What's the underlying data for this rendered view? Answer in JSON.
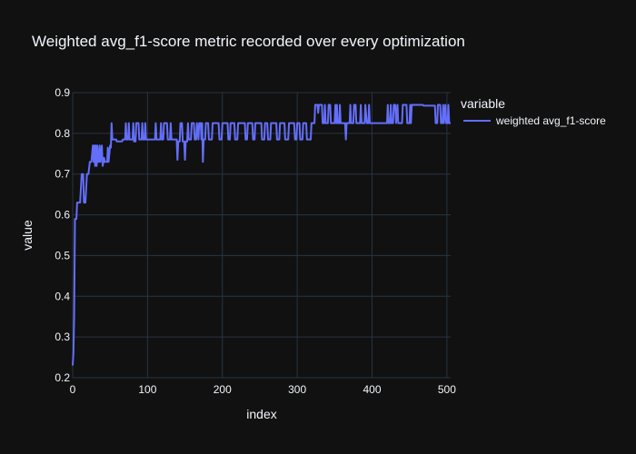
{
  "chart_data": {
    "type": "line",
    "title": "Weighted avg_f1-score metric recorded over every optimization",
    "xlabel": "index",
    "ylabel": "value",
    "xlim": [
      0,
      505
    ],
    "ylim": [
      0.2,
      0.9
    ],
    "xticks": [
      0,
      100,
      200,
      300,
      400,
      500
    ],
    "xtick_labels": [
      "0",
      "100",
      "200",
      "300",
      "400",
      "500"
    ],
    "yticks": [
      0.2,
      0.3,
      0.4,
      0.5,
      0.6,
      0.7,
      0.8,
      0.9
    ],
    "ytick_labels": [
      "0.2",
      "0.3",
      "0.4",
      "0.5",
      "0.6",
      "0.7",
      "0.8",
      "0.9"
    ],
    "legend": {
      "title": "variable",
      "position": "top-right"
    },
    "series": [
      {
        "name": "weighted avg_f1-score",
        "color": "#636efa",
        "points": [
          [
            0,
            0.23
          ],
          [
            1,
            0.26
          ],
          [
            2,
            0.35
          ],
          [
            3,
            0.59
          ],
          [
            5,
            0.59
          ],
          [
            6,
            0.63
          ],
          [
            10,
            0.63
          ],
          [
            12,
            0.7
          ],
          [
            14,
            0.7
          ],
          [
            15,
            0.63
          ],
          [
            17,
            0.63
          ],
          [
            19,
            0.7
          ],
          [
            21,
            0.7
          ],
          [
            23,
            0.73
          ],
          [
            25,
            0.73
          ],
          [
            27,
            0.77
          ],
          [
            28,
            0.73
          ],
          [
            29,
            0.77
          ],
          [
            30,
            0.72
          ],
          [
            31,
            0.77
          ],
          [
            32,
            0.72
          ],
          [
            33,
            0.77
          ],
          [
            34,
            0.73
          ],
          [
            35,
            0.73
          ],
          [
            36,
            0.77
          ],
          [
            37,
            0.73
          ],
          [
            39,
            0.77
          ],
          [
            40,
            0.72
          ],
          [
            42,
            0.74
          ],
          [
            43,
            0.73
          ],
          [
            46,
            0.73
          ],
          [
            47,
            0.765
          ],
          [
            48,
            0.73
          ],
          [
            50,
            0.77
          ],
          [
            51,
            0.765
          ],
          [
            52,
            0.825
          ],
          [
            53,
            0.785
          ],
          [
            58,
            0.785
          ],
          [
            59,
            0.78
          ],
          [
            66,
            0.78
          ],
          [
            67,
            0.785
          ],
          [
            70,
            0.785
          ],
          [
            71,
            0.825
          ],
          [
            72,
            0.785
          ],
          [
            74,
            0.785
          ],
          [
            75,
            0.825
          ],
          [
            76,
            0.785
          ],
          [
            80,
            0.785
          ],
          [
            81,
            0.825
          ],
          [
            82,
            0.78
          ],
          [
            84,
            0.78
          ],
          [
            85,
            0.825
          ],
          [
            88,
            0.825
          ],
          [
            89,
            0.785
          ],
          [
            92,
            0.785
          ],
          [
            93,
            0.825
          ],
          [
            94,
            0.785
          ],
          [
            96,
            0.785
          ],
          [
            97,
            0.825
          ],
          [
            98,
            0.785
          ],
          [
            110,
            0.785
          ],
          [
            111,
            0.825
          ],
          [
            112,
            0.785
          ],
          [
            117,
            0.785
          ],
          [
            118,
            0.825
          ],
          [
            119,
            0.785
          ],
          [
            121,
            0.785
          ],
          [
            122,
            0.825
          ],
          [
            126,
            0.825
          ],
          [
            127,
            0.785
          ],
          [
            130,
            0.785
          ],
          [
            131,
            0.825
          ],
          [
            132,
            0.785
          ],
          [
            139,
            0.785
          ],
          [
            140,
            0.735
          ],
          [
            141,
            0.78
          ],
          [
            143,
            0.78
          ],
          [
            144,
            0.825
          ],
          [
            146,
            0.825
          ],
          [
            147,
            0.78
          ],
          [
            149,
            0.78
          ],
          [
            150,
            0.735
          ],
          [
            151,
            0.78
          ],
          [
            153,
            0.78
          ],
          [
            154,
            0.825
          ],
          [
            155,
            0.785
          ],
          [
            158,
            0.785
          ],
          [
            159,
            0.825
          ],
          [
            162,
            0.825
          ],
          [
            163,
            0.785
          ],
          [
            165,
            0.785
          ],
          [
            166,
            0.825
          ],
          [
            168,
            0.785
          ],
          [
            169,
            0.825
          ],
          [
            171,
            0.825
          ],
          [
            172,
            0.785
          ],
          [
            173,
            0.825
          ],
          [
            174,
            0.73
          ],
          [
            175,
            0.785
          ],
          [
            177,
            0.785
          ],
          [
            178,
            0.825
          ],
          [
            181,
            0.825
          ],
          [
            182,
            0.785
          ],
          [
            186,
            0.785
          ],
          [
            187,
            0.825
          ],
          [
            195,
            0.825
          ],
          [
            196,
            0.785
          ],
          [
            199,
            0.785
          ],
          [
            200,
            0.825
          ],
          [
            207,
            0.825
          ],
          [
            208,
            0.785
          ],
          [
            210,
            0.785
          ],
          [
            211,
            0.825
          ],
          [
            216,
            0.825
          ],
          [
            217,
            0.785
          ],
          [
            220,
            0.785
          ],
          [
            221,
            0.825
          ],
          [
            230,
            0.825
          ],
          [
            231,
            0.785
          ],
          [
            233,
            0.785
          ],
          [
            234,
            0.825
          ],
          [
            240,
            0.825
          ],
          [
            241,
            0.785
          ],
          [
            243,
            0.785
          ],
          [
            244,
            0.825
          ],
          [
            252,
            0.825
          ],
          [
            253,
            0.785
          ],
          [
            256,
            0.785
          ],
          [
            257,
            0.825
          ],
          [
            260,
            0.825
          ],
          [
            261,
            0.785
          ],
          [
            264,
            0.785
          ],
          [
            265,
            0.825
          ],
          [
            272,
            0.825
          ],
          [
            273,
            0.785
          ],
          [
            276,
            0.785
          ],
          [
            277,
            0.825
          ],
          [
            283,
            0.825
          ],
          [
            284,
            0.785
          ],
          [
            288,
            0.785
          ],
          [
            289,
            0.825
          ],
          [
            296,
            0.825
          ],
          [
            297,
            0.785
          ],
          [
            299,
            0.785
          ],
          [
            300,
            0.825
          ],
          [
            303,
            0.825
          ],
          [
            304,
            0.785
          ],
          [
            307,
            0.785
          ],
          [
            308,
            0.825
          ],
          [
            312,
            0.825
          ],
          [
            313,
            0.785
          ],
          [
            318,
            0.785
          ],
          [
            319,
            0.825
          ],
          [
            323,
            0.825
          ],
          [
            324,
            0.87
          ],
          [
            327,
            0.87
          ],
          [
            328,
            0.85
          ],
          [
            329,
            0.87
          ],
          [
            333,
            0.87
          ],
          [
            334,
            0.825
          ],
          [
            336,
            0.825
          ],
          [
            337,
            0.87
          ],
          [
            338,
            0.825
          ],
          [
            341,
            0.825
          ],
          [
            342,
            0.87
          ],
          [
            344,
            0.87
          ],
          [
            345,
            0.825
          ],
          [
            350,
            0.825
          ],
          [
            351,
            0.87
          ],
          [
            352,
            0.825
          ],
          [
            353,
            0.87
          ],
          [
            354,
            0.825
          ],
          [
            356,
            0.825
          ],
          [
            357,
            0.87
          ],
          [
            358,
            0.825
          ],
          [
            364,
            0.825
          ],
          [
            365,
            0.785
          ],
          [
            366,
            0.825
          ],
          [
            370,
            0.825
          ],
          [
            371,
            0.87
          ],
          [
            372,
            0.825
          ],
          [
            375,
            0.825
          ],
          [
            376,
            0.87
          ],
          [
            378,
            0.87
          ],
          [
            379,
            0.825
          ],
          [
            384,
            0.825
          ],
          [
            385,
            0.87
          ],
          [
            386,
            0.825
          ],
          [
            390,
            0.825
          ],
          [
            391,
            0.87
          ],
          [
            393,
            0.825
          ],
          [
            395,
            0.825
          ],
          [
            396,
            0.87
          ],
          [
            397,
            0.825
          ],
          [
            420,
            0.825
          ],
          [
            421,
            0.87
          ],
          [
            422,
            0.825
          ],
          [
            424,
            0.825
          ],
          [
            425,
            0.87
          ],
          [
            426,
            0.825
          ],
          [
            428,
            0.825
          ],
          [
            429,
            0.87
          ],
          [
            431,
            0.87
          ],
          [
            432,
            0.825
          ],
          [
            434,
            0.87
          ],
          [
            435,
            0.825
          ],
          [
            440,
            0.825
          ],
          [
            441,
            0.87
          ],
          [
            446,
            0.87
          ],
          [
            447,
            0.825
          ],
          [
            450,
            0.825
          ],
          [
            451,
            0.87
          ],
          [
            452,
            0.825
          ],
          [
            453,
            0.87
          ],
          [
            468,
            0.87
          ],
          [
            469,
            0.868
          ],
          [
            484,
            0.868
          ],
          [
            485,
            0.825
          ],
          [
            487,
            0.825
          ],
          [
            488,
            0.87
          ],
          [
            491,
            0.87
          ],
          [
            492,
            0.825
          ],
          [
            494,
            0.825
          ],
          [
            495,
            0.87
          ],
          [
            496,
            0.825
          ],
          [
            498,
            0.87
          ],
          [
            499,
            0.825
          ],
          [
            501,
            0.825
          ],
          [
            502,
            0.87
          ],
          [
            503,
            0.825
          ],
          [
            505,
            0.825
          ]
        ]
      }
    ]
  }
}
